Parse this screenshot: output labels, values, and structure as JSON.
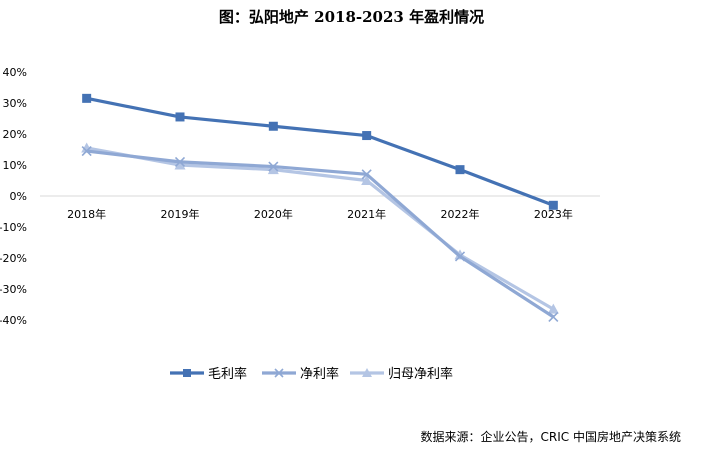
{
  "title": "图：弘阳地产 2018-2023 年盈利情况",
  "source": "数据来源：企业公告，CRIC 中国房地产决策系统",
  "colors": {
    "gross": "#4472b4",
    "net": "#8fa8d4",
    "parent_net": "#b4c5e4"
  },
  "chart_data": {
    "type": "line",
    "title": "图：弘阳地产 2018-2023 年盈利情况",
    "categories": [
      "2018年",
      "2019年",
      "2020年",
      "2021年",
      "2022年",
      "2023年"
    ],
    "y_ticks": [
      "40%",
      "30%",
      "20%",
      "10%",
      "0%",
      "-10%",
      "-20%",
      "-30%",
      "-40%"
    ],
    "ylim": [
      -40,
      40
    ],
    "y_unit": "%",
    "grid": false,
    "legend_position": "bottom",
    "series": [
      {
        "name": "毛利率",
        "marker": "square",
        "values": [
          31.5,
          25.5,
          22.5,
          19.5,
          8.5,
          -3.0
        ]
      },
      {
        "name": "净利率",
        "marker": "x",
        "values": [
          14.5,
          11.0,
          9.5,
          7.0,
          -19.5,
          -39.0
        ]
      },
      {
        "name": "归母净利率",
        "marker": "triangle",
        "values": [
          15.5,
          10.0,
          8.5,
          5.0,
          -19.0,
          -36.5
        ]
      }
    ]
  }
}
